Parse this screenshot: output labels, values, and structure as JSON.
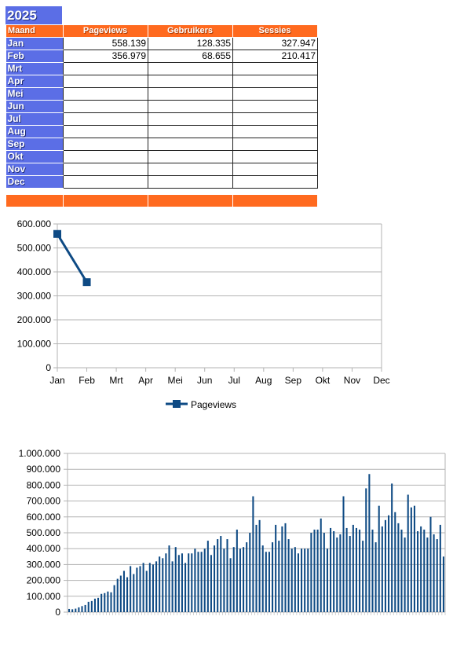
{
  "sheet": {
    "year": "2025",
    "headers": {
      "month": "Maand",
      "pageviews": "Pageviews",
      "users": "Gebruikers",
      "sessions": "Sessies"
    },
    "rows": [
      {
        "month": "Jan",
        "pageviews": "558.139",
        "users": "128.335",
        "sessions": "327.947"
      },
      {
        "month": "Feb",
        "pageviews": "356.979",
        "users": "68.655",
        "sessions": "210.417"
      },
      {
        "month": "Mrt",
        "pageviews": "",
        "users": "",
        "sessions": ""
      },
      {
        "month": "Apr",
        "pageviews": "",
        "users": "",
        "sessions": ""
      },
      {
        "month": "Mei",
        "pageviews": "",
        "users": "",
        "sessions": ""
      },
      {
        "month": "Jun",
        "pageviews": "",
        "users": "",
        "sessions": ""
      },
      {
        "month": "Jul",
        "pageviews": "",
        "users": "",
        "sessions": ""
      },
      {
        "month": "Aug",
        "pageviews": "",
        "users": "",
        "sessions": ""
      },
      {
        "month": "Sep",
        "pageviews": "",
        "users": "",
        "sessions": ""
      },
      {
        "month": "Okt",
        "pageviews": "",
        "users": "",
        "sessions": ""
      },
      {
        "month": "Nov",
        "pageviews": "",
        "users": "",
        "sessions": ""
      },
      {
        "month": "Dec",
        "pageviews": "",
        "users": "",
        "sessions": ""
      }
    ],
    "colors": {
      "month_col": "#5b6ee6",
      "header": "#ff6a1f"
    }
  },
  "chart_data": [
    {
      "type": "line",
      "categories": [
        "Jan",
        "Feb",
        "Mrt",
        "Apr",
        "Mei",
        "Jun",
        "Jul",
        "Aug",
        "Sep",
        "Okt",
        "Nov",
        "Dec"
      ],
      "series": [
        {
          "name": "Pageviews",
          "values": [
            558139,
            356979,
            null,
            null,
            null,
            null,
            null,
            null,
            null,
            null,
            null,
            null
          ],
          "color": "#0e4a84"
        }
      ],
      "ylim": [
        0,
        600000
      ],
      "yticks": [
        "0",
        "100.000",
        "200.000",
        "300.000",
        "400.000",
        "500.000",
        "600.000"
      ],
      "grid": true,
      "legend": "bottom-center"
    },
    {
      "type": "bar",
      "series": [
        {
          "values": [
            20000,
            18000,
            22000,
            30000,
            38000,
            45000,
            65000,
            70000,
            85000,
            90000,
            115000,
            120000,
            130000,
            125000,
            170000,
            210000,
            230000,
            260000,
            220000,
            290000,
            240000,
            280000,
            290000,
            310000,
            260000,
            310000,
            300000,
            320000,
            350000,
            340000,
            370000,
            420000,
            320000,
            410000,
            360000,
            370000,
            310000,
            370000,
            370000,
            400000,
            380000,
            380000,
            400000,
            450000,
            360000,
            420000,
            460000,
            480000,
            400000,
            460000,
            340000,
            410000,
            520000,
            400000,
            410000,
            440000,
            500000,
            730000,
            550000,
            580000,
            420000,
            380000,
            380000,
            440000,
            550000,
            450000,
            540000,
            560000,
            460000,
            400000,
            410000,
            370000,
            400000,
            400000,
            400000,
            500000,
            520000,
            520000,
            590000,
            500000,
            400000,
            530000,
            510000,
            470000,
            490000,
            730000,
            530000,
            480000,
            550000,
            530000,
            520000,
            450000,
            780000,
            870000,
            520000,
            440000,
            670000,
            540000,
            580000,
            610000,
            810000,
            630000,
            560000,
            520000,
            470000,
            740000,
            660000,
            670000,
            510000,
            540000,
            520000,
            470000,
            600000,
            490000,
            460000,
            550000,
            350000
          ],
          "color": "#0e4a84"
        }
      ],
      "ylim": [
        0,
        1000000
      ],
      "yticks": [
        "0",
        "100.000",
        "200.000",
        "300.000",
        "400.000",
        "500.000",
        "600.000",
        "700.000",
        "800.000",
        "900.000",
        "1.000.000"
      ],
      "grid": true
    }
  ]
}
